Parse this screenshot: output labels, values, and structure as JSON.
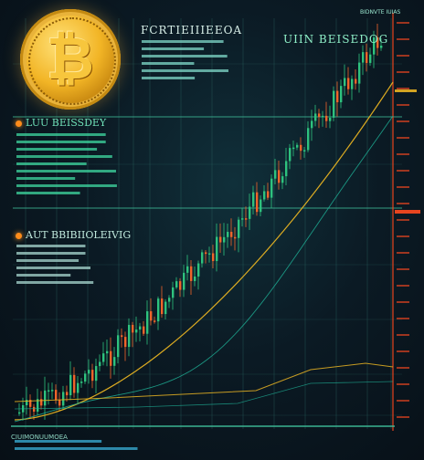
{
  "scene": {
    "subject": "bitcoin candlestick price chart artwork",
    "colors": {
      "background": "#0b1a24",
      "grid": "#2f6f6a",
      "grid_highlight": "#3fbf9a",
      "candle_up": "#2ec27e",
      "candle_down": "#f0642a",
      "moving_average": "#e8b322",
      "second_average": "#1fb59a",
      "axis_marker": "#ff4a1f",
      "coin_gold": "#f2b526",
      "label_teal": "#37e0b0"
    },
    "icons": [
      "bitcoin-coin-icon"
    ],
    "labels": {
      "header": "FCRTIEIIIEEOA",
      "top_right": "BIDNVTE IUIAS",
      "panel_heading": "UIIN BEISEDOG",
      "block_heading_1": "LUU BEISSDEY",
      "block_heading_2": "AUT BBIBIIOLEIVIG",
      "bottom_legend": "CIUIMONUUMOEA"
    }
  }
}
